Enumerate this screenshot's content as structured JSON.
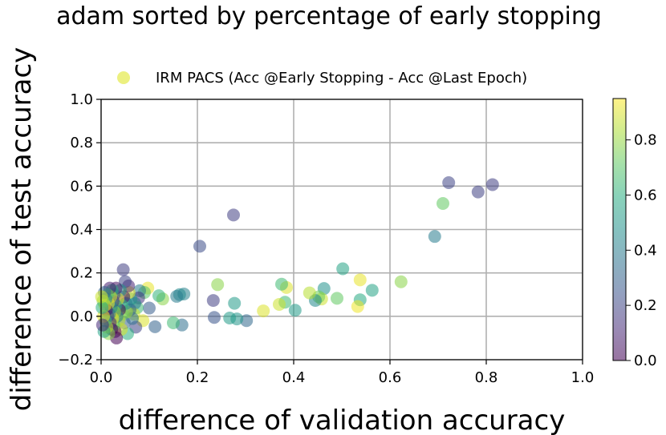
{
  "chart_data": {
    "type": "scatter",
    "title": "adam sorted by percentage of early stopping",
    "xlabel": "difference of validation accuracy",
    "ylabel": "difference of test accuracy",
    "xlim": [
      0.0,
      1.0
    ],
    "ylim": [
      -0.2,
      1.0
    ],
    "x_ticks": [
      0.0,
      0.2,
      0.4,
      0.6,
      0.8,
      1.0
    ],
    "x_tick_labels": [
      "0.0",
      "0.2",
      "0.4",
      "0.6",
      "0.8",
      "1.0"
    ],
    "y_ticks": [
      -0.2,
      0.0,
      0.2,
      0.4,
      0.6,
      0.8,
      1.0
    ],
    "y_tick_labels": [
      "−0.2",
      "0.0",
      "0.2",
      "0.4",
      "0.6",
      "0.8",
      "1.0"
    ],
    "grid": true,
    "legend": {
      "placement": "top",
      "entries": [
        "IRM PACS (Acc @Early Stopping - Acc @Last Epoch)"
      ],
      "marker_color": "#dde318"
    },
    "colorbar": {
      "colormap": "viridis",
      "range": [
        0.0,
        0.95
      ],
      "ticks": [
        0.0,
        0.2,
        0.4,
        0.6,
        0.8
      ],
      "tick_labels": [
        "0.0",
        "0.2",
        "0.4",
        "0.6",
        "0.8"
      ]
    },
    "marker_alpha": 0.55,
    "series": [
      {
        "points": [
          [
            0.813,
            0.607,
            0.18
          ],
          [
            0.722,
            0.616,
            0.2
          ],
          [
            0.783,
            0.573,
            0.19
          ],
          [
            0.71,
            0.52,
            0.72
          ],
          [
            0.693,
            0.368,
            0.4
          ],
          [
            0.623,
            0.159,
            0.78
          ],
          [
            0.563,
            0.12,
            0.55
          ],
          [
            0.538,
            0.168,
            0.92
          ],
          [
            0.538,
            0.076,
            0.58
          ],
          [
            0.533,
            0.045,
            0.93
          ],
          [
            0.502,
            0.219,
            0.55
          ],
          [
            0.49,
            0.083,
            0.72
          ],
          [
            0.463,
            0.128,
            0.48
          ],
          [
            0.458,
            0.08,
            0.88
          ],
          [
            0.452,
            0.09,
            0.74
          ],
          [
            0.445,
            0.073,
            0.45
          ],
          [
            0.433,
            0.108,
            0.85
          ],
          [
            0.403,
            0.028,
            0.52
          ],
          [
            0.385,
            0.133,
            0.9
          ],
          [
            0.382,
            0.065,
            0.65
          ],
          [
            0.375,
            0.148,
            0.65
          ],
          [
            0.37,
            0.055,
            0.88
          ],
          [
            0.337,
            0.025,
            0.9
          ],
          [
            0.302,
            -0.02,
            0.32
          ],
          [
            0.282,
            -0.012,
            0.5
          ],
          [
            0.277,
            0.06,
            0.52
          ],
          [
            0.267,
            -0.008,
            0.52
          ],
          [
            0.275,
            0.467,
            0.18
          ],
          [
            0.242,
            0.146,
            0.78
          ],
          [
            0.235,
            -0.005,
            0.25
          ],
          [
            0.233,
            0.073,
            0.18
          ],
          [
            0.205,
            0.323,
            0.22
          ],
          [
            0.172,
            0.103,
            0.42
          ],
          [
            0.168,
            -0.04,
            0.35
          ],
          [
            0.163,
            0.1,
            0.45
          ],
          [
            0.157,
            0.092,
            0.4
          ],
          [
            0.15,
            -0.03,
            0.65
          ],
          [
            0.128,
            0.08,
            0.78
          ],
          [
            0.12,
            0.095,
            0.62
          ],
          [
            0.112,
            -0.048,
            0.3
          ],
          [
            0.1,
            0.038,
            0.28
          ],
          [
            0.097,
            0.13,
            0.92
          ],
          [
            0.09,
            0.11,
            0.7
          ],
          [
            0.087,
            -0.02,
            0.9
          ],
          [
            0.08,
            0.118,
            0.4
          ],
          [
            0.078,
            0.085,
            0.15
          ],
          [
            0.075,
            0.04,
            0.65
          ],
          [
            0.072,
            -0.05,
            0.2
          ],
          [
            0.07,
            0.06,
            0.38
          ],
          [
            0.068,
            0.01,
            0.88
          ],
          [
            0.065,
            -0.01,
            0.35
          ],
          [
            0.062,
            0.08,
            0.5
          ],
          [
            0.06,
            0.03,
            0.3
          ],
          [
            0.058,
            0.11,
            0.92
          ],
          [
            0.057,
            0.14,
            0.1
          ],
          [
            0.055,
            -0.08,
            0.6
          ],
          [
            0.053,
            0.02,
            0.8
          ],
          [
            0.052,
            0.06,
            0.42
          ],
          [
            0.05,
            0.16,
            0.2
          ],
          [
            0.048,
            -0.03,
            0.3
          ],
          [
            0.047,
            0.09,
            0.05
          ],
          [
            0.046,
            0.215,
            0.18
          ],
          [
            0.045,
            0.01,
            0.75
          ],
          [
            0.043,
            0.05,
            0.62
          ],
          [
            0.042,
            -0.06,
            0.9
          ],
          [
            0.04,
            0.12,
            0.5
          ],
          [
            0.038,
            0.03,
            0.02
          ],
          [
            0.037,
            -0.02,
            0.85
          ],
          [
            0.035,
            0.08,
            0.92
          ],
          [
            0.033,
            0.0,
            0.4
          ],
          [
            0.032,
            -0.1,
            0.0
          ],
          [
            0.031,
            0.13,
            0.05
          ],
          [
            0.03,
            0.05,
            0.55
          ],
          [
            0.029,
            -0.07,
            0.02
          ],
          [
            0.028,
            0.02,
            0.8
          ],
          [
            0.027,
            0.1,
            0.25
          ],
          [
            0.026,
            -0.04,
            0.7
          ],
          [
            0.025,
            0.07,
            0.15
          ],
          [
            0.024,
            -0.01,
            0.92
          ],
          [
            0.023,
            0.12,
            0.6
          ],
          [
            0.022,
            -0.06,
            0.0
          ],
          [
            0.021,
            0.04,
            0.45
          ],
          [
            0.02,
            0.09,
            0.88
          ],
          [
            0.019,
            -0.03,
            0.1
          ],
          [
            0.018,
            0.13,
            0.08
          ],
          [
            0.017,
            0.01,
            0.35
          ],
          [
            0.016,
            -0.08,
            0.78
          ],
          [
            0.015,
            0.06,
            0.92
          ],
          [
            0.014,
            0.0,
            0.2
          ],
          [
            0.013,
            0.1,
            0.7
          ],
          [
            0.012,
            -0.05,
            0.85
          ],
          [
            0.011,
            0.03,
            0.05
          ],
          [
            0.01,
            0.08,
            0.4
          ],
          [
            0.009,
            -0.02,
            0.65
          ],
          [
            0.008,
            0.05,
            0.9
          ],
          [
            0.007,
            0.11,
            0.3
          ],
          [
            0.006,
            -0.07,
            0.55
          ],
          [
            0.005,
            0.0,
            0.92
          ],
          [
            0.004,
            0.07,
            0.8
          ],
          [
            0.003,
            -0.04,
            0.12
          ],
          [
            0.002,
            0.04,
            0.6
          ],
          [
            0.001,
            0.09,
            0.88
          ]
        ]
      }
    ]
  }
}
